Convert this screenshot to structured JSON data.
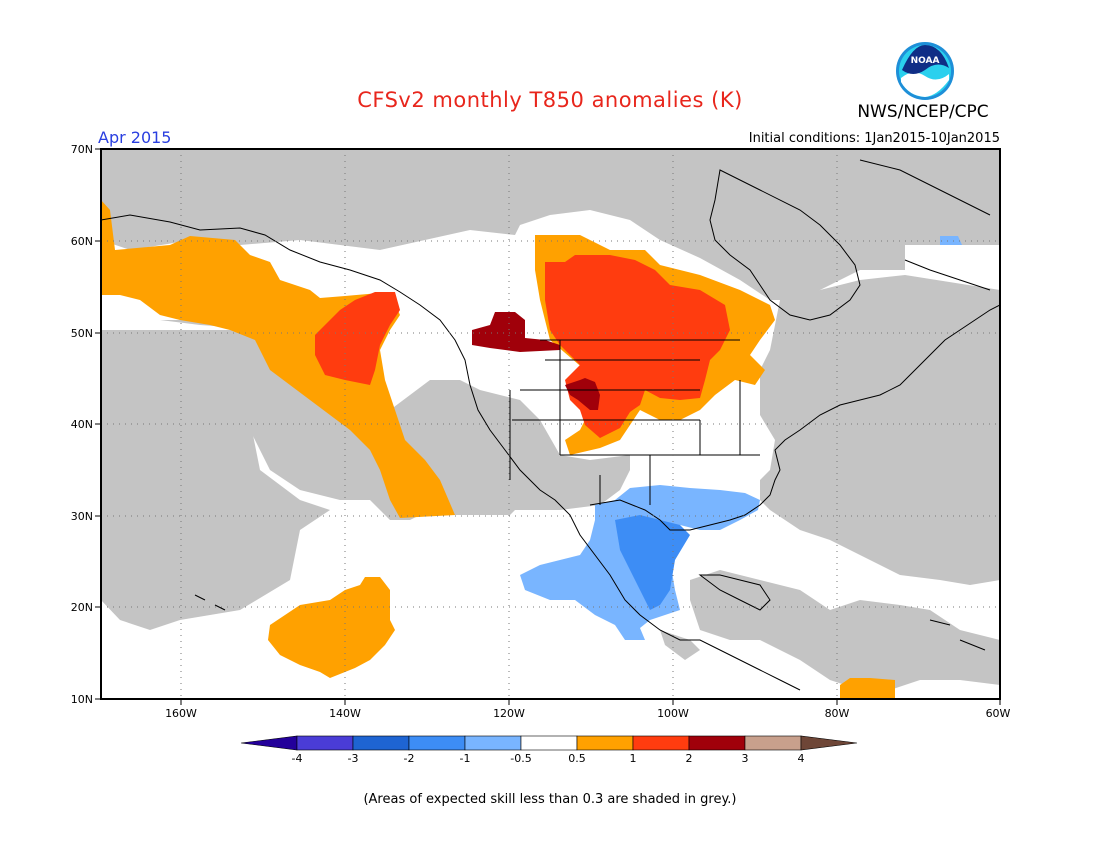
{
  "title": "CFSv2 monthly T850 anomalies (K)",
  "organization": "NWS/NCEP/CPC",
  "logo_text": "NOAA",
  "month": "Apr 2015",
  "initial_conditions": "Initial conditions: 1Jan2015-10Jan2015",
  "footnote": "(Areas of expected skill less than 0.3 are shaded in grey.)",
  "map": {
    "lat_labels": [
      "70N",
      "60N",
      "50N",
      "40N",
      "30N",
      "20N",
      "10N"
    ],
    "lon_labels": [
      "160W",
      "140W",
      "120W",
      "100W",
      "80W",
      "60W"
    ],
    "colors": {
      "grey": "#c4c4c4",
      "orange": "#ffa100",
      "red_orange": "#ff3c0f",
      "dark_red": "#a0000a",
      "light_blue": "#79b5ff",
      "mid_blue": "#3d8df5",
      "land_outline": "#000000"
    }
  },
  "colorbar": {
    "labels": [
      "-4",
      "-3",
      "-2",
      "-1",
      "-0.5",
      "0.5",
      "1",
      "2",
      "3",
      "4"
    ],
    "colors": [
      "#23009a",
      "#4a3cd6",
      "#1e64d2",
      "#3d8df5",
      "#79b5ff",
      "#ffffff",
      "#ffa100",
      "#ff3c0f",
      "#a0000a",
      "#c8a08c",
      "#6e4637"
    ]
  }
}
